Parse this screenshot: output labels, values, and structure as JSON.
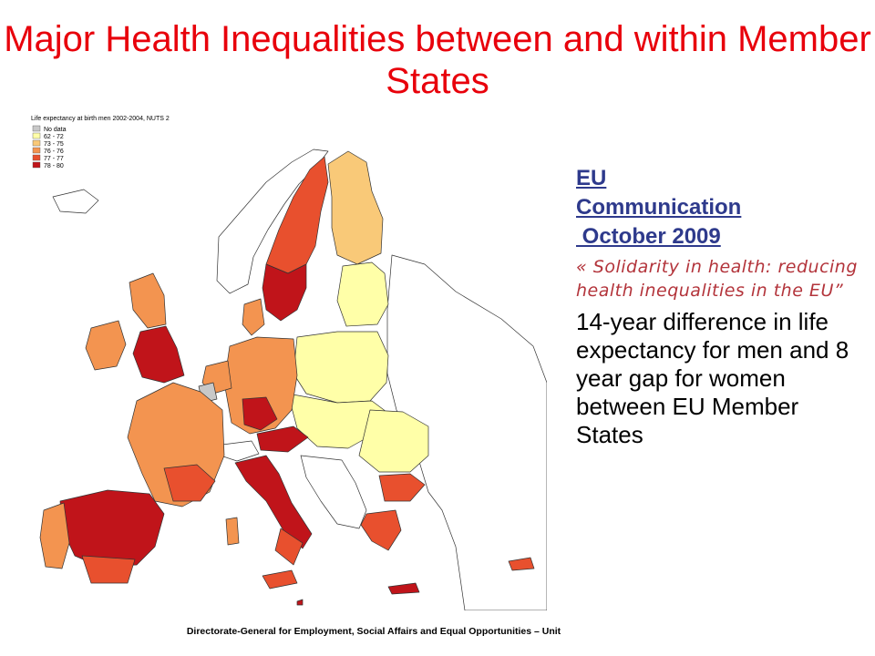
{
  "slide": {
    "title": "Major Health Inequalities between and within Member States",
    "footer": "Directorate-General for Employment, Social Affairs and Equal Opportunities – Unit"
  },
  "map": {
    "legend_title": "Life expectancy at birth men 2002-2004, NUTS 2",
    "legend": [
      {
        "label": "No data",
        "color": "#c8c8c8"
      },
      {
        "label": "62 - 72",
        "color": "#ffffa8"
      },
      {
        "label": "73 - 75",
        "color": "#f9c978"
      },
      {
        "label": "76 - 76",
        "color": "#f39450"
      },
      {
        "label": "77 - 77",
        "color": "#e8502e"
      },
      {
        "label": "78 - 80",
        "color": "#c0141a"
      }
    ],
    "colors": {
      "nodata": "#c8c8c8",
      "c1": "#ffffa8",
      "c2": "#f9c978",
      "c3": "#f39450",
      "c4": "#e8502e",
      "c5": "#c0141a",
      "nonEU": "#ffffff"
    }
  },
  "side": {
    "comm_line1": "EU",
    "comm_line2": "Communication",
    "comm_line3": " October 2009",
    "quote": "« Solidarity in health: reducing health inequalities in the EU”",
    "body": "14-year difference in life expectancy  for men and 8 year gap for women between EU Member States"
  }
}
